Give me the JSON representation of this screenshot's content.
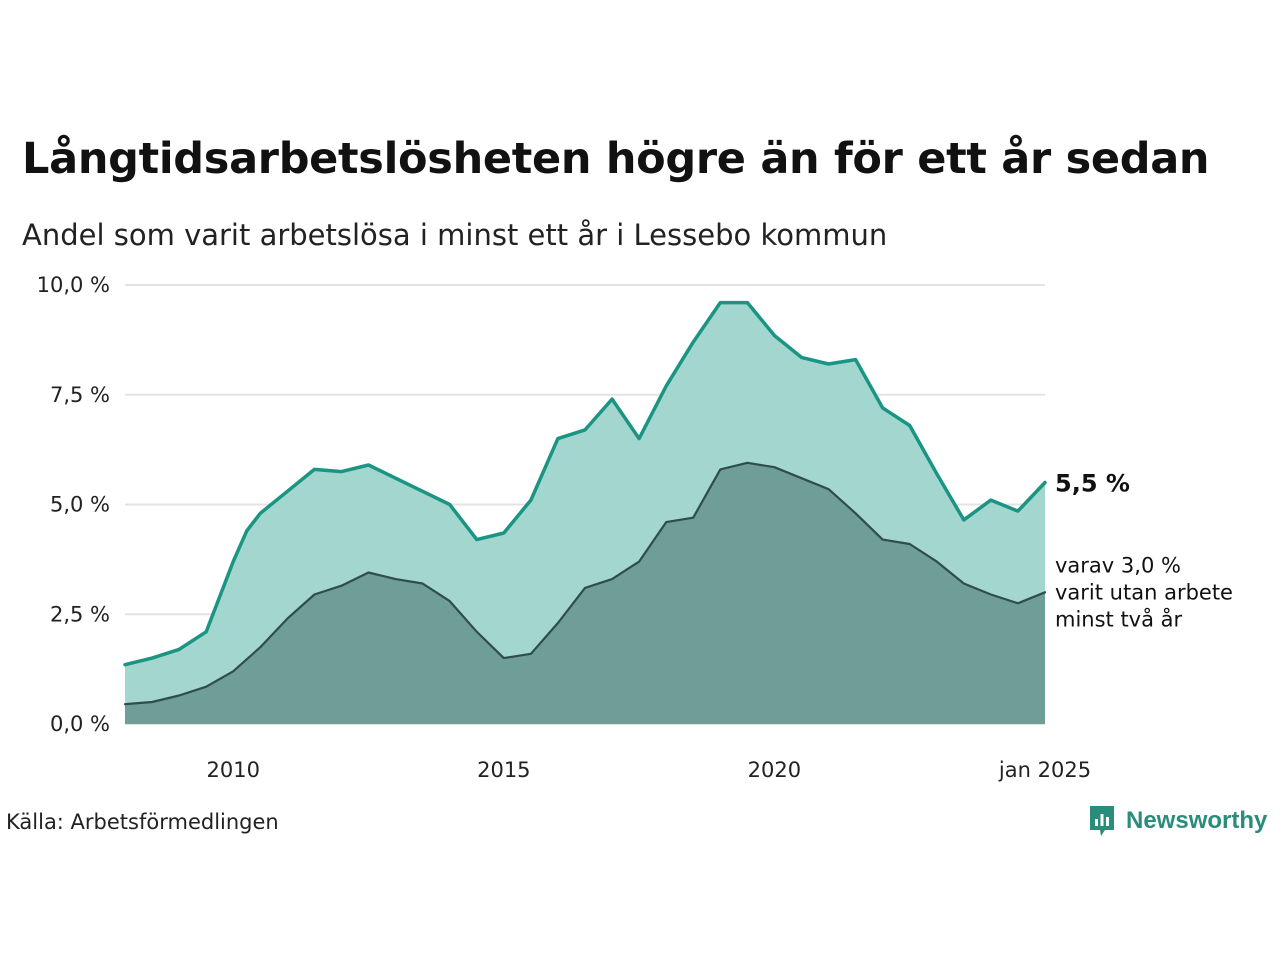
{
  "title": "Långtidsarbetslösheten högre än för ett år sedan",
  "subtitle": "Andel som varit arbetslösa i minst ett år i Lessebo kommun",
  "source": "Källa: Arbetsförmedlingen",
  "logo": {
    "text": "Newsworthy",
    "icon": "newsworthy-logo-icon",
    "color": "#2a8d7c"
  },
  "colors": {
    "upper_fill": "#a3d6cf",
    "upper_line": "#1a9483",
    "lower_fill": "#6f9e97",
    "lower_line": "#2f4d49",
    "grid": "#e3e3e3"
  },
  "chart_data": {
    "type": "area",
    "x_range": [
      "2008-01",
      "2025-01"
    ],
    "ylim": [
      0,
      10
    ],
    "y_ticks": [
      "0,0 %",
      "2,5 %",
      "5,0 %",
      "7,5 %",
      "10,0 %"
    ],
    "y_tick_values": [
      0,
      2.5,
      5,
      7.5,
      10
    ],
    "x_ticks": [
      "2010",
      "2015",
      "2020",
      "jan 2025"
    ],
    "x_tick_values": [
      "2010-01",
      "2015-01",
      "2020-01",
      "2025-01"
    ],
    "grid": true,
    "series": [
      {
        "name": "Andel som varit arbetslösa i minst ett år",
        "points": [
          [
            "2008-01",
            1.35
          ],
          [
            "2008-07",
            1.5
          ],
          [
            "2009-01",
            1.7
          ],
          [
            "2009-07",
            2.1
          ],
          [
            "2010-01",
            3.7
          ],
          [
            "2010-04",
            4.4
          ],
          [
            "2010-07",
            4.8
          ],
          [
            "2011-01",
            5.3
          ],
          [
            "2011-07",
            5.8
          ],
          [
            "2012-01",
            5.75
          ],
          [
            "2012-07",
            5.9
          ],
          [
            "2013-01",
            5.6
          ],
          [
            "2013-07",
            5.3
          ],
          [
            "2014-01",
            5.0
          ],
          [
            "2014-07",
            4.2
          ],
          [
            "2015-01",
            4.35
          ],
          [
            "2015-07",
            5.1
          ],
          [
            "2016-01",
            6.5
          ],
          [
            "2016-07",
            6.7
          ],
          [
            "2017-01",
            7.4
          ],
          [
            "2017-07",
            6.5
          ],
          [
            "2018-01",
            7.7
          ],
          [
            "2018-07",
            8.7
          ],
          [
            "2019-01",
            9.6
          ],
          [
            "2019-07",
            9.6
          ],
          [
            "2020-01",
            8.85
          ],
          [
            "2020-07",
            8.35
          ],
          [
            "2021-01",
            8.2
          ],
          [
            "2021-07",
            8.3
          ],
          [
            "2022-01",
            7.2
          ],
          [
            "2022-07",
            6.8
          ],
          [
            "2023-01",
            5.7
          ],
          [
            "2023-07",
            4.65
          ],
          [
            "2024-01",
            5.1
          ],
          [
            "2024-07",
            4.85
          ],
          [
            "2025-01",
            5.5
          ]
        ]
      },
      {
        "name": "varav minst två år",
        "points": [
          [
            "2008-01",
            0.45
          ],
          [
            "2008-07",
            0.5
          ],
          [
            "2009-01",
            0.65
          ],
          [
            "2009-07",
            0.85
          ],
          [
            "2010-01",
            1.2
          ],
          [
            "2010-07",
            1.75
          ],
          [
            "2011-01",
            2.4
          ],
          [
            "2011-07",
            2.95
          ],
          [
            "2012-01",
            3.15
          ],
          [
            "2012-07",
            3.45
          ],
          [
            "2013-01",
            3.3
          ],
          [
            "2013-07",
            3.2
          ],
          [
            "2014-01",
            2.8
          ],
          [
            "2014-07",
            2.1
          ],
          [
            "2015-01",
            1.5
          ],
          [
            "2015-07",
            1.6
          ],
          [
            "2016-01",
            2.3
          ],
          [
            "2016-07",
            3.1
          ],
          [
            "2017-01",
            3.3
          ],
          [
            "2017-07",
            3.7
          ],
          [
            "2018-01",
            4.6
          ],
          [
            "2018-07",
            4.7
          ],
          [
            "2019-01",
            5.8
          ],
          [
            "2019-07",
            5.95
          ],
          [
            "2020-01",
            5.85
          ],
          [
            "2020-07",
            5.6
          ],
          [
            "2021-01",
            5.35
          ],
          [
            "2021-07",
            4.8
          ],
          [
            "2022-01",
            4.2
          ],
          [
            "2022-07",
            4.1
          ],
          [
            "2023-01",
            3.7
          ],
          [
            "2023-07",
            3.2
          ],
          [
            "2024-01",
            2.95
          ],
          [
            "2024-07",
            2.75
          ],
          [
            "2025-01",
            3.0
          ]
        ]
      }
    ],
    "annotations": {
      "upper_value": "5,5 %",
      "lower_lines": [
        "varav 3,0 %",
        "varit utan arbete",
        "minst två år"
      ]
    }
  }
}
